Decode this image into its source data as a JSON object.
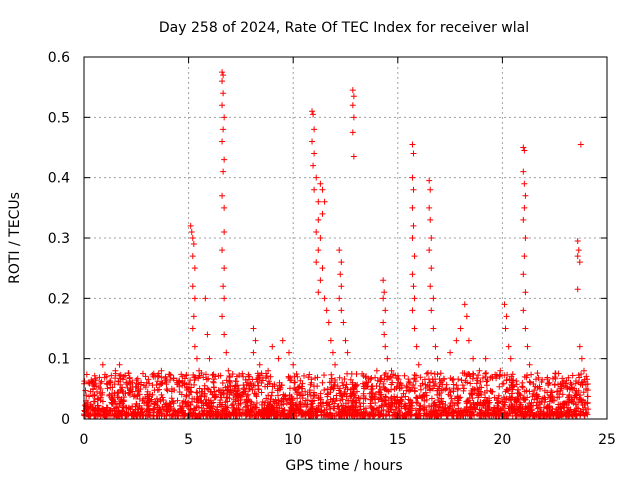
{
  "chart_data": {
    "type": "scatter",
    "title": "Day 258 of 2024, Rate Of TEC Index for receiver wlal",
    "xlabel": "GPS time / hours",
    "ylabel": "ROTI / TECUs",
    "xlim": [
      0,
      25
    ],
    "ylim": [
      0,
      0.6
    ],
    "xticks": [
      0,
      5,
      10,
      15,
      20,
      25
    ],
    "yticks": [
      0,
      0.1,
      0.2,
      0.3,
      0.4,
      0.5,
      0.6
    ],
    "xtick_labels": [
      "0",
      "5",
      "10",
      "15",
      "20",
      "25"
    ],
    "ytick_labels": [
      "0",
      "0.1",
      "0.2",
      "0.3",
      "0.4",
      "0.5",
      "0.6"
    ],
    "grid": true,
    "marker": "+",
    "color": "#ff0000",
    "series": [
      {
        "name": "ROTI",
        "points": [
          [
            0.1,
            0.03
          ],
          [
            0.3,
            0.02
          ],
          [
            0.5,
            0.04
          ],
          [
            0.8,
            0.05
          ],
          [
            0.9,
            0.09
          ],
          [
            1.2,
            0.06
          ],
          [
            1.5,
            0.08
          ],
          [
            1.7,
            0.09
          ],
          [
            1.9,
            0.07
          ],
          [
            2.2,
            0.04
          ],
          [
            2.6,
            0.05
          ],
          [
            3.0,
            0.06
          ],
          [
            3.4,
            0.07
          ],
          [
            3.7,
            0.08
          ],
          [
            3.9,
            0.07
          ],
          [
            4.2,
            0.05
          ],
          [
            4.5,
            0.06
          ],
          [
            4.7,
            0.07
          ],
          [
            5.1,
            0.32
          ],
          [
            5.15,
            0.31
          ],
          [
            5.2,
            0.3
          ],
          [
            5.25,
            0.29
          ],
          [
            5.2,
            0.27
          ],
          [
            5.3,
            0.25
          ],
          [
            5.2,
            0.22
          ],
          [
            5.3,
            0.2
          ],
          [
            5.25,
            0.17
          ],
          [
            5.2,
            0.15
          ],
          [
            5.3,
            0.12
          ],
          [
            5.4,
            0.1
          ],
          [
            5.5,
            0.08
          ],
          [
            5.8,
            0.2
          ],
          [
            5.9,
            0.14
          ],
          [
            6.0,
            0.1
          ],
          [
            6.2,
            0.06
          ],
          [
            6.6,
            0.575
          ],
          [
            6.65,
            0.57
          ],
          [
            6.6,
            0.56
          ],
          [
            6.65,
            0.54
          ],
          [
            6.6,
            0.52
          ],
          [
            6.7,
            0.5
          ],
          [
            6.65,
            0.48
          ],
          [
            6.6,
            0.46
          ],
          [
            6.7,
            0.43
          ],
          [
            6.65,
            0.41
          ],
          [
            6.6,
            0.37
          ],
          [
            6.7,
            0.35
          ],
          [
            6.7,
            0.31
          ],
          [
            6.6,
            0.28
          ],
          [
            6.7,
            0.25
          ],
          [
            6.65,
            0.22
          ],
          [
            6.7,
            0.2
          ],
          [
            6.6,
            0.17
          ],
          [
            6.7,
            0.14
          ],
          [
            6.8,
            0.11
          ],
          [
            6.9,
            0.08
          ],
          [
            7.4,
            0.05
          ],
          [
            7.8,
            0.06
          ],
          [
            8.1,
            0.15
          ],
          [
            8.2,
            0.13
          ],
          [
            8.1,
            0.11
          ],
          [
            8.4,
            0.09
          ],
          [
            8.8,
            0.08
          ],
          [
            9.0,
            0.12
          ],
          [
            9.3,
            0.1
          ],
          [
            9.5,
            0.13
          ],
          [
            9.8,
            0.11
          ],
          [
            10.0,
            0.09
          ],
          [
            10.2,
            0.07
          ],
          [
            10.9,
            0.51
          ],
          [
            10.95,
            0.505
          ],
          [
            11.0,
            0.48
          ],
          [
            10.9,
            0.46
          ],
          [
            11.0,
            0.44
          ],
          [
            10.95,
            0.42
          ],
          [
            11.1,
            0.4
          ],
          [
            11.0,
            0.38
          ],
          [
            11.2,
            0.36
          ],
          [
            11.3,
            0.39
          ],
          [
            11.4,
            0.38
          ],
          [
            11.5,
            0.36
          ],
          [
            11.4,
            0.34
          ],
          [
            11.2,
            0.33
          ],
          [
            11.1,
            0.31
          ],
          [
            11.3,
            0.3
          ],
          [
            11.2,
            0.28
          ],
          [
            11.1,
            0.26
          ],
          [
            11.4,
            0.25
          ],
          [
            11.3,
            0.23
          ],
          [
            11.2,
            0.21
          ],
          [
            11.5,
            0.2
          ],
          [
            11.6,
            0.18
          ],
          [
            11.7,
            0.16
          ],
          [
            11.8,
            0.13
          ],
          [
            11.9,
            0.11
          ],
          [
            12.0,
            0.09
          ],
          [
            12.2,
            0.28
          ],
          [
            12.3,
            0.26
          ],
          [
            12.25,
            0.24
          ],
          [
            12.3,
            0.22
          ],
          [
            12.2,
            0.2
          ],
          [
            12.3,
            0.18
          ],
          [
            12.4,
            0.16
          ],
          [
            12.5,
            0.13
          ],
          [
            12.6,
            0.11
          ],
          [
            12.85,
            0.545
          ],
          [
            12.9,
            0.535
          ],
          [
            12.85,
            0.52
          ],
          [
            12.9,
            0.5
          ],
          [
            12.85,
            0.475
          ],
          [
            12.9,
            0.435
          ],
          [
            13.5,
            0.06
          ],
          [
            13.8,
            0.05
          ],
          [
            14.0,
            0.08
          ],
          [
            14.3,
            0.23
          ],
          [
            14.35,
            0.21
          ],
          [
            14.3,
            0.2
          ],
          [
            14.4,
            0.18
          ],
          [
            14.3,
            0.16
          ],
          [
            14.35,
            0.14
          ],
          [
            14.4,
            0.12
          ],
          [
            14.5,
            0.1
          ],
          [
            14.7,
            0.08
          ],
          [
            15.0,
            0.06
          ],
          [
            15.7,
            0.455
          ],
          [
            15.75,
            0.44
          ],
          [
            15.7,
            0.4
          ],
          [
            15.75,
            0.38
          ],
          [
            15.7,
            0.35
          ],
          [
            15.75,
            0.32
          ],
          [
            15.7,
            0.3
          ],
          [
            15.8,
            0.27
          ],
          [
            15.7,
            0.24
          ],
          [
            15.75,
            0.22
          ],
          [
            15.8,
            0.2
          ],
          [
            15.7,
            0.18
          ],
          [
            15.8,
            0.15
          ],
          [
            15.9,
            0.12
          ],
          [
            16.0,
            0.09
          ],
          [
            16.5,
            0.395
          ],
          [
            16.55,
            0.38
          ],
          [
            16.5,
            0.35
          ],
          [
            16.55,
            0.33
          ],
          [
            16.6,
            0.3
          ],
          [
            16.5,
            0.28
          ],
          [
            16.6,
            0.25
          ],
          [
            16.55,
            0.22
          ],
          [
            16.7,
            0.2
          ],
          [
            16.6,
            0.18
          ],
          [
            16.7,
            0.15
          ],
          [
            16.8,
            0.12
          ],
          [
            16.9,
            0.1
          ],
          [
            17.5,
            0.11
          ],
          [
            17.8,
            0.13
          ],
          [
            18.0,
            0.15
          ],
          [
            18.2,
            0.19
          ],
          [
            18.3,
            0.17
          ],
          [
            18.4,
            0.13
          ],
          [
            18.6,
            0.1
          ],
          [
            18.9,
            0.08
          ],
          [
            19.2,
            0.1
          ],
          [
            19.5,
            0.07
          ],
          [
            19.9,
            0.08
          ],
          [
            20.1,
            0.19
          ],
          [
            20.2,
            0.17
          ],
          [
            20.15,
            0.15
          ],
          [
            20.3,
            0.12
          ],
          [
            20.4,
            0.1
          ],
          [
            21.0,
            0.45
          ],
          [
            21.05,
            0.445
          ],
          [
            21.0,
            0.41
          ],
          [
            21.05,
            0.39
          ],
          [
            21.1,
            0.37
          ],
          [
            21.05,
            0.35
          ],
          [
            21.0,
            0.33
          ],
          [
            21.1,
            0.3
          ],
          [
            21.05,
            0.27
          ],
          [
            21.0,
            0.24
          ],
          [
            21.1,
            0.21
          ],
          [
            21.0,
            0.18
          ],
          [
            21.1,
            0.15
          ],
          [
            21.2,
            0.12
          ],
          [
            21.3,
            0.09
          ],
          [
            21.8,
            0.05
          ],
          [
            22.3,
            0.04
          ],
          [
            22.8,
            0.05
          ],
          [
            23.2,
            0.04
          ],
          [
            23.6,
            0.295
          ],
          [
            23.65,
            0.28
          ],
          [
            23.6,
            0.27
          ],
          [
            23.7,
            0.26
          ],
          [
            23.6,
            0.215
          ],
          [
            23.7,
            0.12
          ],
          [
            23.8,
            0.1
          ],
          [
            23.9,
            0.08
          ],
          [
            23.75,
            0.455
          ],
          [
            24.0,
            0.05
          ]
        ]
      }
    ],
    "baseline_band": [
      0.005,
      0.06
    ]
  }
}
